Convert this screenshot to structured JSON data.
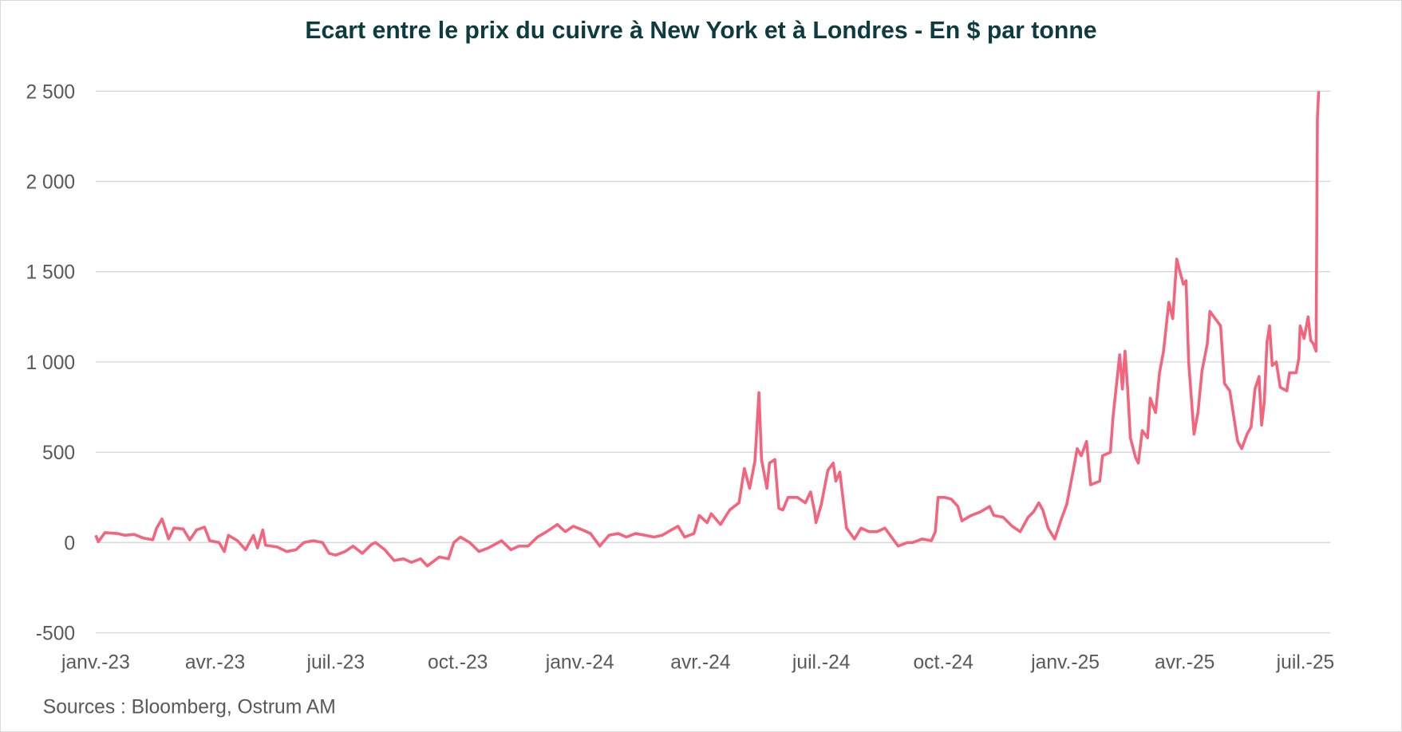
{
  "chart_data": {
    "type": "line",
    "title": "Ecart entre le prix du cuivre à New York et à Londres - En $ par tonne",
    "source": "Sources : Bloomberg, Ostrum AM",
    "xlabel": "",
    "ylabel": "",
    "ylim": [
      -500,
      2500
    ],
    "yticks": [
      -500,
      0,
      500,
      1000,
      1500,
      2000,
      2500
    ],
    "ytick_labels": [
      "-500",
      "0",
      "500",
      "1 000",
      "1 500",
      "2 000",
      "2 500"
    ],
    "xlim": [
      "2023-01-01",
      "2025-07-11"
    ],
    "xticks": [
      "2023-01-01",
      "2023-04-01",
      "2023-07-01",
      "2023-10-01",
      "2024-01-01",
      "2024-04-01",
      "2024-07-01",
      "2024-10-01",
      "2025-01-01",
      "2025-04-01",
      "2025-07-01"
    ],
    "xtick_labels": [
      "janv.-23",
      "avr.-23",
      "juil.-23",
      "oct.-23",
      "janv.-24",
      "avr.-24",
      "juil.-24",
      "oct.-24",
      "janv.-25",
      "avr.-25",
      "juil.-25"
    ],
    "grid": "horizontal",
    "legend": "none",
    "line_color": "#f4647c",
    "series": [
      {
        "points": [
          [
            "2023-01-01",
            40
          ],
          [
            "2023-01-03",
            5
          ],
          [
            "2023-01-08",
            55
          ],
          [
            "2023-01-17",
            50
          ],
          [
            "2023-01-23",
            40
          ],
          [
            "2023-01-30",
            45
          ],
          [
            "2023-02-06",
            25
          ],
          [
            "2023-02-13",
            15
          ],
          [
            "2023-02-16",
            80
          ],
          [
            "2023-02-20",
            130
          ],
          [
            "2023-02-25",
            20
          ],
          [
            "2023-03-01",
            80
          ],
          [
            "2023-03-08",
            75
          ],
          [
            "2023-03-13",
            15
          ],
          [
            "2023-03-18",
            70
          ],
          [
            "2023-03-24",
            85
          ],
          [
            "2023-03-28",
            10
          ],
          [
            "2023-04-04",
            0
          ],
          [
            "2023-04-08",
            -50
          ],
          [
            "2023-04-11",
            40
          ],
          [
            "2023-04-18",
            10
          ],
          [
            "2023-04-24",
            -40
          ],
          [
            "2023-04-30",
            40
          ],
          [
            "2023-05-03",
            -30
          ],
          [
            "2023-05-07",
            70
          ],
          [
            "2023-05-09",
            -15
          ],
          [
            "2023-05-18",
            -25
          ],
          [
            "2023-05-25",
            -50
          ],
          [
            "2023-06-01",
            -40
          ],
          [
            "2023-06-07",
            0
          ],
          [
            "2023-06-14",
            10
          ],
          [
            "2023-06-21",
            0
          ],
          [
            "2023-06-26",
            -60
          ],
          [
            "2023-07-01",
            -70
          ],
          [
            "2023-07-08",
            -50
          ],
          [
            "2023-07-14",
            -20
          ],
          [
            "2023-07-21",
            -60
          ],
          [
            "2023-07-28",
            -10
          ],
          [
            "2023-07-31",
            0
          ],
          [
            "2023-08-07",
            -40
          ],
          [
            "2023-08-14",
            -100
          ],
          [
            "2023-08-21",
            -90
          ],
          [
            "2023-08-27",
            -110
          ],
          [
            "2023-09-03",
            -90
          ],
          [
            "2023-09-08",
            -130
          ],
          [
            "2023-09-17",
            -80
          ],
          [
            "2023-09-24",
            -90
          ],
          [
            "2023-09-28",
            0
          ],
          [
            "2023-10-03",
            30
          ],
          [
            "2023-10-10",
            0
          ],
          [
            "2023-10-17",
            -50
          ],
          [
            "2023-10-24",
            -30
          ],
          [
            "2023-11-03",
            10
          ],
          [
            "2023-11-10",
            -40
          ],
          [
            "2023-11-16",
            -20
          ],
          [
            "2023-11-23",
            -20
          ],
          [
            "2023-11-30",
            30
          ],
          [
            "2023-12-07",
            60
          ],
          [
            "2023-12-15",
            100
          ],
          [
            "2023-12-21",
            60
          ],
          [
            "2023-12-27",
            90
          ],
          [
            "2024-01-03",
            70
          ],
          [
            "2024-01-09",
            50
          ],
          [
            "2024-01-16",
            -20
          ],
          [
            "2024-01-23",
            40
          ],
          [
            "2024-01-30",
            50
          ],
          [
            "2024-02-05",
            30
          ],
          [
            "2024-02-12",
            50
          ],
          [
            "2024-02-19",
            40
          ],
          [
            "2024-02-26",
            30
          ],
          [
            "2024-03-03",
            40
          ],
          [
            "2024-03-10",
            70
          ],
          [
            "2024-03-15",
            90
          ],
          [
            "2024-03-20",
            30
          ],
          [
            "2024-03-27",
            50
          ],
          [
            "2024-03-31",
            150
          ],
          [
            "2024-04-06",
            110
          ],
          [
            "2024-04-09",
            160
          ],
          [
            "2024-04-16",
            100
          ],
          [
            "2024-04-23",
            180
          ],
          [
            "2024-04-30",
            220
          ],
          [
            "2024-05-04",
            410
          ],
          [
            "2024-05-08",
            300
          ],
          [
            "2024-05-12",
            450
          ],
          [
            "2024-05-15",
            830
          ],
          [
            "2024-05-17",
            460
          ],
          [
            "2024-05-21",
            300
          ],
          [
            "2024-05-23",
            440
          ],
          [
            "2024-05-27",
            460
          ],
          [
            "2024-05-30",
            190
          ],
          [
            "2024-06-02",
            180
          ],
          [
            "2024-06-06",
            250
          ],
          [
            "2024-06-13",
            250
          ],
          [
            "2024-06-19",
            220
          ],
          [
            "2024-06-23",
            280
          ],
          [
            "2024-06-26",
            170
          ],
          [
            "2024-06-27",
            110
          ],
          [
            "2024-07-01",
            210
          ],
          [
            "2024-07-06",
            400
          ],
          [
            "2024-07-10",
            440
          ],
          [
            "2024-07-12",
            340
          ],
          [
            "2024-07-15",
            390
          ],
          [
            "2024-07-20",
            80
          ],
          [
            "2024-07-26",
            20
          ],
          [
            "2024-07-31",
            80
          ],
          [
            "2024-08-06",
            60
          ],
          [
            "2024-08-12",
            60
          ],
          [
            "2024-08-18",
            80
          ],
          [
            "2024-08-22",
            40
          ],
          [
            "2024-08-28",
            -20
          ],
          [
            "2024-09-04",
            0
          ],
          [
            "2024-09-08",
            0
          ],
          [
            "2024-09-15",
            20
          ],
          [
            "2024-09-22",
            10
          ],
          [
            "2024-09-25",
            60
          ],
          [
            "2024-09-27",
            250
          ],
          [
            "2024-10-02",
            250
          ],
          [
            "2024-10-07",
            240
          ],
          [
            "2024-10-12",
            200
          ],
          [
            "2024-10-15",
            120
          ],
          [
            "2024-10-22",
            150
          ],
          [
            "2024-10-29",
            170
          ],
          [
            "2024-11-05",
            200
          ],
          [
            "2024-11-08",
            150
          ],
          [
            "2024-11-15",
            140
          ],
          [
            "2024-11-22",
            90
          ],
          [
            "2024-11-28",
            60
          ],
          [
            "2024-12-04",
            140
          ],
          [
            "2024-12-08",
            170
          ],
          [
            "2024-12-12",
            220
          ],
          [
            "2024-12-15",
            180
          ],
          [
            "2024-12-19",
            80
          ],
          [
            "2024-12-24",
            20
          ],
          [
            "2024-12-29",
            130
          ],
          [
            "2025-01-02",
            210
          ],
          [
            "2025-01-07",
            400
          ],
          [
            "2025-01-10",
            520
          ],
          [
            "2025-01-13",
            480
          ],
          [
            "2025-01-17",
            560
          ],
          [
            "2025-01-20",
            320
          ],
          [
            "2025-01-27",
            340
          ],
          [
            "2025-01-29",
            480
          ],
          [
            "2025-02-04",
            500
          ],
          [
            "2025-02-06",
            700
          ],
          [
            "2025-02-11",
            1040
          ],
          [
            "2025-02-13",
            850
          ],
          [
            "2025-02-15",
            1060
          ],
          [
            "2025-02-17",
            850
          ],
          [
            "2025-02-19",
            580
          ],
          [
            "2025-02-23",
            470
          ],
          [
            "2025-02-25",
            440
          ],
          [
            "2025-02-28",
            620
          ],
          [
            "2025-03-04",
            580
          ],
          [
            "2025-03-06",
            800
          ],
          [
            "2025-03-10",
            720
          ],
          [
            "2025-03-13",
            940
          ],
          [
            "2025-03-16",
            1060
          ],
          [
            "2025-03-20",
            1330
          ],
          [
            "2025-03-23",
            1240
          ],
          [
            "2025-03-26",
            1570
          ],
          [
            "2025-03-28",
            1510
          ],
          [
            "2025-03-31",
            1430
          ],
          [
            "2025-04-02",
            1450
          ],
          [
            "2025-04-04",
            1000
          ],
          [
            "2025-04-08",
            600
          ],
          [
            "2025-04-11",
            720
          ],
          [
            "2025-04-14",
            950
          ],
          [
            "2025-04-18",
            1100
          ],
          [
            "2025-04-20",
            1280
          ],
          [
            "2025-04-24",
            1240
          ],
          [
            "2025-04-28",
            1200
          ],
          [
            "2025-05-01",
            880
          ],
          [
            "2025-05-05",
            840
          ],
          [
            "2025-05-10",
            600
          ],
          [
            "2025-05-11",
            560
          ],
          [
            "2025-05-14",
            520
          ],
          [
            "2025-05-18",
            600
          ],
          [
            "2025-05-21",
            640
          ],
          [
            "2025-05-24",
            850
          ],
          [
            "2025-05-27",
            920
          ],
          [
            "2025-05-29",
            650
          ],
          [
            "2025-05-31",
            780
          ],
          [
            "2025-06-02",
            1110
          ],
          [
            "2025-06-04",
            1200
          ],
          [
            "2025-06-06",
            980
          ],
          [
            "2025-06-09",
            1000
          ],
          [
            "2025-06-12",
            860
          ],
          [
            "2025-06-17",
            840
          ],
          [
            "2025-06-19",
            940
          ],
          [
            "2025-06-24",
            940
          ],
          [
            "2025-06-26",
            1020
          ],
          [
            "2025-06-27",
            1200
          ],
          [
            "2025-06-30",
            1130
          ],
          [
            "2025-07-03",
            1250
          ],
          [
            "2025-07-05",
            1120
          ],
          [
            "2025-07-07",
            1100
          ],
          [
            "2025-07-09",
            1060
          ],
          [
            "2025-07-10",
            2350
          ],
          [
            "2025-07-11",
            2500
          ]
        ]
      }
    ]
  }
}
